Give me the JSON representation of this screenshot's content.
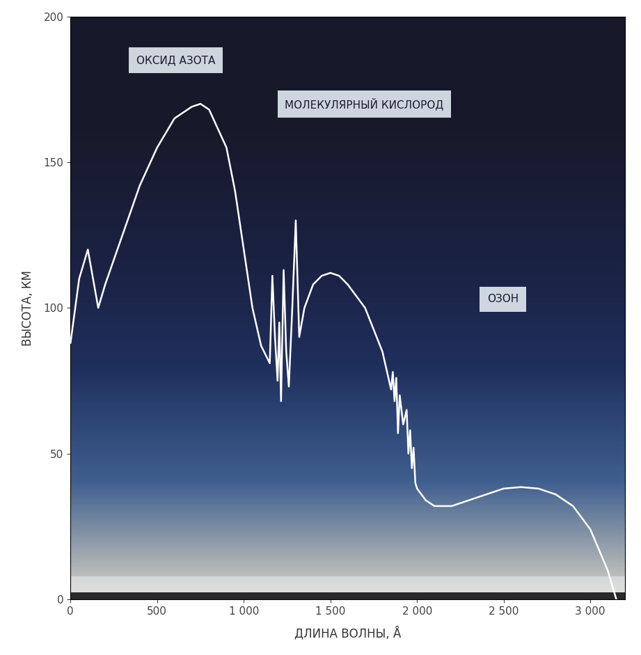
{
  "chart_data": {
    "type": "line",
    "x_label": "ДЛИНА ВОЛНЫ, Å",
    "y_label": "ВЫСОТА, КМ",
    "annotations": [
      "ОКСИД АЗОТА",
      "МОЛЕКУЛЯРНЫЙ КИСЛОРОД",
      "ОЗОН"
    ],
    "x": [
      0,
      50,
      100,
      160,
      200,
      300,
      400,
      500,
      600,
      700,
      750,
      800,
      900,
      950,
      1000,
      1050,
      1100,
      1150,
      1165,
      1180,
      1195,
      1205,
      1215,
      1230,
      1245,
      1260,
      1280,
      1300,
      1320,
      1350,
      1400,
      1450,
      1500,
      1550,
      1600,
      1700,
      1800,
      1850,
      1860,
      1870,
      1880,
      1890,
      1900,
      1920,
      1940,
      1950,
      1960,
      1970,
      1980,
      1990,
      2000,
      2050,
      2100,
      2200,
      2300,
      2400,
      2500,
      2600,
      2700,
      2800,
      2900,
      3000,
      3100,
      3150
    ],
    "series": [
      {
        "name": "",
        "color": "#ffffff",
        "line_style": "solid",
        "values": [
          88,
          110,
          120,
          100,
          108,
          125,
          142,
          155,
          165,
          169,
          170,
          168,
          155,
          140,
          120,
          100,
          87,
          81,
          111,
          90,
          75,
          95,
          68,
          113,
          85,
          73,
          100,
          130,
          90,
          100,
          108,
          111,
          112,
          111,
          108,
          100,
          85,
          72,
          78,
          68,
          76,
          57,
          70,
          60,
          65,
          50,
          58,
          45,
          52,
          40,
          38,
          34,
          32,
          32,
          34,
          36,
          38,
          38.5,
          38,
          36,
          32,
          24,
          10,
          0
        ]
      }
    ],
    "xlim": [
      0,
      3200
    ],
    "ylim": [
      0,
      200
    ],
    "xticks": [
      0,
      500,
      {
        "value": 1000,
        "label": "1 000"
      },
      {
        "value": 1500,
        "label": "1 500"
      },
      {
        "value": 2000,
        "label": "2 000"
      },
      {
        "value": 2500,
        "label": "2 500"
      },
      {
        "value": 3000,
        "label": "3 000"
      }
    ],
    "yticks": [
      0,
      50,
      100,
      150,
      200
    ],
    "grid": false
  }
}
